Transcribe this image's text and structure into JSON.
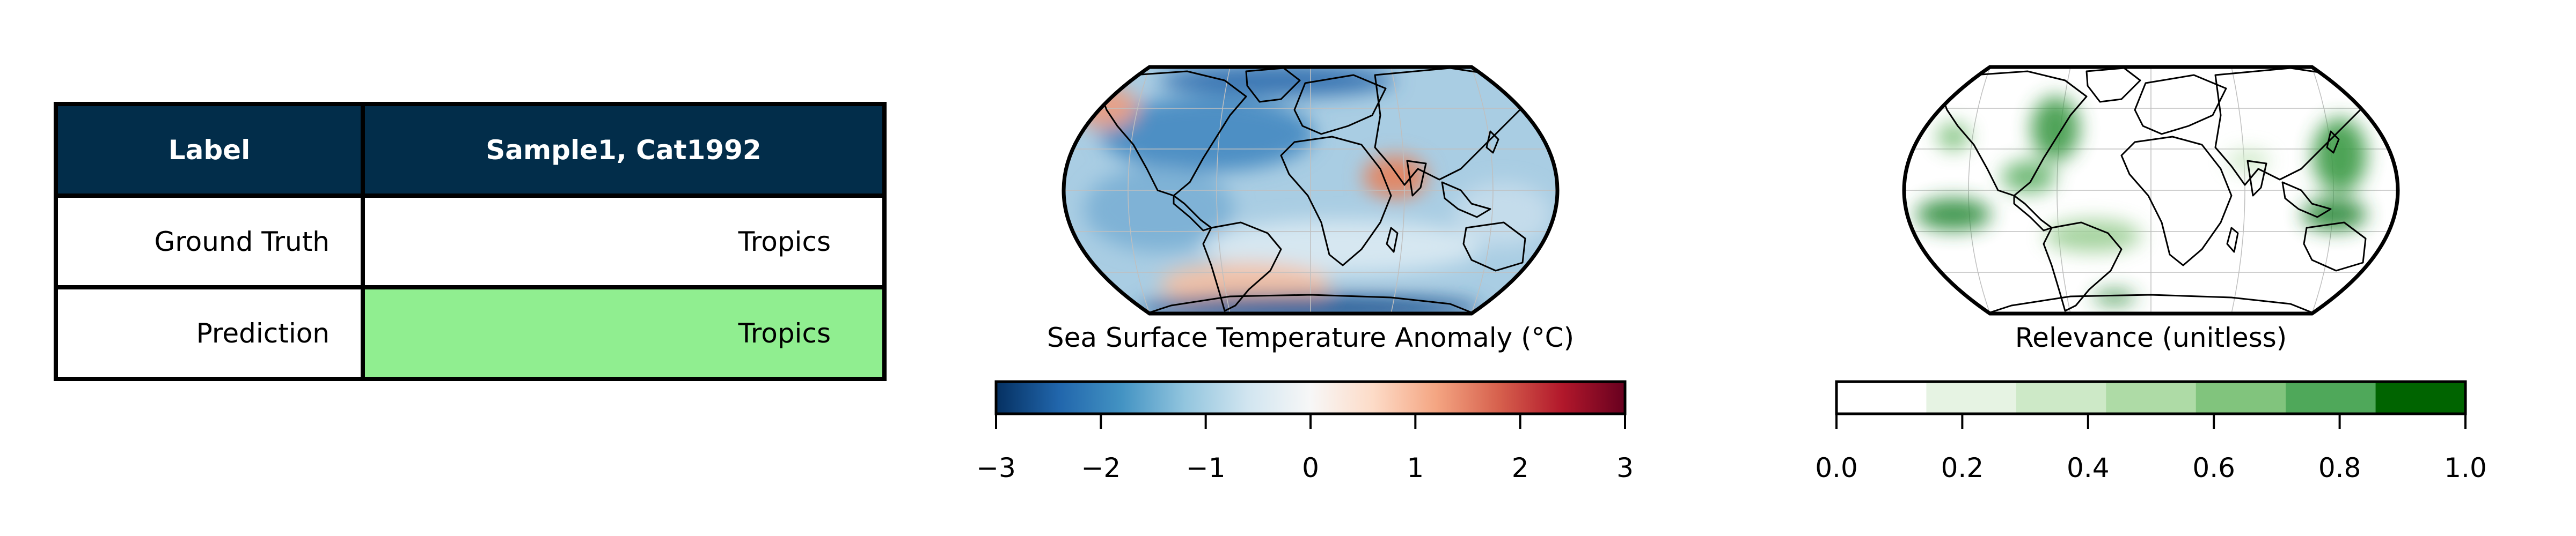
{
  "table": {
    "headers": [
      "Label",
      "Sample1, Cat1992"
    ],
    "rows": [
      {
        "label": "Ground Truth",
        "value": "Tropics"
      },
      {
        "label": "Prediction",
        "value": "Tropics"
      }
    ],
    "colors": {
      "header_bg": "#022d4a",
      "header_text": "#ffffff",
      "prediction_bg": "#90ee90"
    }
  },
  "chart_data": [
    {
      "type": "heatmap",
      "projection": "robinson",
      "title": "Sea Surface Temperature Anomaly (°C)",
      "colormap": "RdBu_r",
      "colorbar": {
        "range": [
          -3,
          3
        ],
        "ticks": [
          -3,
          -2,
          -1,
          0,
          1,
          2,
          3
        ],
        "tick_labels": [
          "−3",
          "−2",
          "−1",
          "0",
          "1",
          "2",
          "3"
        ],
        "colors": [
          "#053061",
          "#2166ac",
          "#4393c3",
          "#92c5de",
          "#d1e5f0",
          "#f7f7f7",
          "#fddbc7",
          "#f4a582",
          "#d6604d",
          "#b2182b",
          "#67001f"
        ]
      },
      "grid": true
    },
    {
      "type": "heatmap",
      "projection": "robinson",
      "title": "Relevance (unitless)",
      "colormap": "Greens",
      "colorbar": {
        "range": [
          0,
          1
        ],
        "ticks": [
          0,
          0.2,
          0.4,
          0.6,
          0.8,
          1
        ],
        "tick_labels": [
          "0.0",
          "0.2",
          "0.4",
          "0.6",
          "0.8",
          "1.0"
        ],
        "bins": 7,
        "colors": [
          "#ffffff",
          "#e6f3e3",
          "#cde9c7",
          "#aedba6",
          "#81c47d",
          "#4fa85a",
          "#006400"
        ]
      },
      "grid": true
    }
  ]
}
